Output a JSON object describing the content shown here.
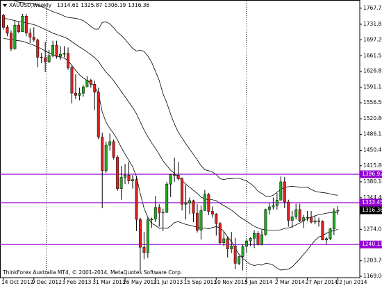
{
  "chart_data": {
    "type": "candlestick",
    "title": "XAUUSD,Weekly",
    "footnote": "ThinkForex Australia MT4, © 2001-2014, MetaQuotes Software Corp.",
    "categories": [
      "14 Oct 2012",
      null,
      null,
      null,
      null,
      null,
      null,
      null,
      "9 Dec 2012",
      null,
      null,
      null,
      null,
      null,
      null,
      null,
      "3 Feb 2013",
      null,
      null,
      null,
      null,
      null,
      null,
      null,
      "31 Mar 2013",
      null,
      null,
      null,
      null,
      null,
      null,
      null,
      "26 May 2013",
      null,
      null,
      null,
      null,
      null,
      null,
      null,
      "21 Jul 2013",
      null,
      null,
      null,
      null,
      null,
      null,
      null,
      "15 Sep 2013",
      null,
      null,
      null,
      null,
      null,
      null,
      null,
      "10 Nov 2013",
      null,
      null,
      null,
      null,
      null,
      null,
      null,
      "5 Jan 2014",
      null,
      null,
      null,
      null,
      null,
      null,
      null,
      "2 Mar 2014",
      null,
      null,
      null,
      null,
      null,
      null,
      null,
      "27 Apr 2014",
      null,
      null,
      null,
      null,
      null,
      null,
      null,
      "22 Jun 2014"
    ],
    "open": [
      1752,
      1725,
      1712,
      1677,
      1730,
      1715,
      1750,
      1712,
      1703,
      1697,
      1658,
      1657,
      1648,
      1662,
      1685,
      1660,
      1665,
      1667,
      1635,
      1578,
      1573,
      1578,
      1592,
      1607,
      1598,
      1580,
      1480,
      1405,
      1462,
      1470,
      1435,
      1365,
      1390,
      1395,
      1382,
      1385,
      1296,
      1234,
      1222,
      1295,
      1297,
      1323,
      1311,
      1312,
      1375,
      1396,
      1395,
      1387,
      1330,
      1333,
      1338,
      1310,
      1272,
      1316,
      1352,
      1314,
      1308,
      1287,
      1244,
      1253,
      1230,
      1237,
      1198,
      1213,
      1236,
      1248,
      1254,
      1265,
      1240,
      1262,
      1318,
      1324,
      1327,
      1339,
      1380,
      1335,
      1294,
      1302,
      1318,
      1293,
      1300,
      1301,
      1290,
      1293,
      1292,
      1250,
      1253,
      1275,
      1314.61
    ],
    "high": [
      1755,
      1730,
      1718,
      1740,
      1738,
      1755,
      1755,
      1722,
      1725,
      1700,
      1668,
      1693,
      1675,
      1695,
      1695,
      1683,
      1683,
      1680,
      1640,
      1620,
      1590,
      1596,
      1616,
      1610,
      1606,
      1590,
      1490,
      1470,
      1488,
      1475,
      1440,
      1415,
      1420,
      1425,
      1395,
      1393,
      1300,
      1268,
      1300,
      1300,
      1348,
      1330,
      1320,
      1380,
      1398,
      1434,
      1424,
      1390,
      1373,
      1345,
      1340,
      1330,
      1327,
      1362,
      1355,
      1325,
      1310,
      1290,
      1268,
      1258,
      1268,
      1255,
      1215,
      1240,
      1252,
      1256,
      1272,
      1270,
      1272,
      1320,
      1332,
      1345,
      1355,
      1392,
      1391,
      1340,
      1315,
      1331,
      1331,
      1306,
      1315,
      1315,
      1305,
      1300,
      1294,
      1257,
      1277,
      1321,
      1325.87
    ],
    "low": [
      1720,
      1705,
      1672,
      1675,
      1712,
      1715,
      1705,
      1690,
      1693,
      1636,
      1645,
      1625,
      1645,
      1658,
      1655,
      1652,
      1658,
      1630,
      1555,
      1565,
      1562,
      1570,
      1592,
      1590,
      1540,
      1475,
      1321,
      1400,
      1450,
      1430,
      1360,
      1340,
      1375,
      1375,
      1365,
      1270,
      1180,
      1207,
      1210,
      1277,
      1290,
      1280,
      1270,
      1310,
      1346,
      1380,
      1383,
      1316,
      1296,
      1308,
      1290,
      1267,
      1251,
      1315,
      1306,
      1300,
      1260,
      1240,
      1236,
      1211,
      1221,
      1185,
      1194,
      1182,
      1222,
      1237,
      1232,
      1238,
      1238,
      1260,
      1307,
      1318,
      1318,
      1339,
      1321,
      1280,
      1277,
      1296,
      1290,
      1277,
      1292,
      1287,
      1285,
      1280,
      1250,
      1240,
      1250,
      1261,
      1306.19
    ],
    "close": [
      1725,
      1712,
      1677,
      1730,
      1715,
      1750,
      1712,
      1703,
      1697,
      1658,
      1657,
      1648,
      1662,
      1685,
      1660,
      1665,
      1667,
      1635,
      1578,
      1573,
      1578,
      1592,
      1607,
      1598,
      1580,
      1480,
      1405,
      1462,
      1470,
      1435,
      1365,
      1390,
      1395,
      1382,
      1385,
      1296,
      1234,
      1222,
      1295,
      1297,
      1323,
      1311,
      1312,
      1375,
      1396,
      1395,
      1387,
      1330,
      1333,
      1338,
      1310,
      1272,
      1316,
      1352,
      1314,
      1308,
      1287,
      1244,
      1253,
      1230,
      1237,
      1198,
      1213,
      1236,
      1248,
      1254,
      1265,
      1240,
      1262,
      1318,
      1324,
      1327,
      1339,
      1380,
      1335,
      1294,
      1302,
      1318,
      1293,
      1300,
      1301,
      1290,
      1293,
      1292,
      1250,
      1253,
      1275,
      1315,
      1316.36
    ],
    "up_color": "#22a822",
    "down_color": "#e02020",
    "wick_color": "#000000",
    "bands": {
      "color": "#000000",
      "upper": [
        1790,
        1789,
        1786,
        1784,
        1781,
        1780,
        1779,
        1778,
        1777,
        1775,
        1771,
        1768,
        1764,
        1760,
        1757,
        1754,
        1750,
        1747,
        1746,
        1745,
        1743,
        1740,
        1734,
        1727,
        1721,
        1721,
        1736,
        1737,
        1733,
        1724,
        1714,
        1707,
        1698,
        1688,
        1678,
        1672,
        1674,
        1671,
        1661,
        1647,
        1627,
        1606,
        1577,
        1556,
        1531,
        1509,
        1491,
        1478,
        1465,
        1453,
        1441,
        1429,
        1416,
        1407,
        1405,
        1402,
        1396,
        1387,
        1385,
        1387,
        1387,
        1388,
        1388,
        1385,
        1382,
        1376,
        1369,
        1359,
        1354,
        1348,
        1347,
        1350,
        1357,
        1363,
        1368,
        1369,
        1370,
        1369,
        1368,
        1368,
        1368,
        1363,
        1359,
        1357,
        1356,
        1355,
        1353,
        1351,
        1350
      ],
      "middle": [
        1745,
        1744,
        1742,
        1740,
        1738,
        1737,
        1735,
        1733,
        1731,
        1728,
        1724,
        1720,
        1716,
        1712,
        1709,
        1706,
        1703,
        1699,
        1693,
        1687,
        1681,
        1676,
        1670,
        1664,
        1657,
        1649,
        1636,
        1625,
        1616,
        1606,
        1594,
        1582,
        1570,
        1558,
        1546,
        1532,
        1514,
        1496,
        1481,
        1467,
        1455,
        1441,
        1427,
        1416,
        1406,
        1399,
        1391,
        1383,
        1375,
        1368,
        1361,
        1354,
        1346,
        1342,
        1340,
        1340,
        1338,
        1332,
        1327,
        1322,
        1317,
        1310,
        1303,
        1297,
        1292,
        1286,
        1281,
        1277,
        1274,
        1273,
        1272,
        1272,
        1272,
        1273,
        1276,
        1277,
        1280,
        1284,
        1288,
        1293,
        1298,
        1301,
        1304,
        1307,
        1308,
        1310,
        1311,
        1311,
        1312
      ],
      "lower": [
        1700,
        1699,
        1698,
        1696,
        1695,
        1694,
        1691,
        1688,
        1685,
        1681,
        1677,
        1672,
        1668,
        1664,
        1661,
        1658,
        1656,
        1651,
        1640,
        1629,
        1619,
        1612,
        1606,
        1601,
        1593,
        1577,
        1536,
        1513,
        1499,
        1488,
        1474,
        1457,
        1442,
        1428,
        1414,
        1392,
        1354,
        1321,
        1301,
        1287,
        1283,
        1276,
        1277,
        1276,
        1281,
        1289,
        1291,
        1288,
        1285,
        1283,
        1281,
        1279,
        1276,
        1277,
        1275,
        1278,
        1280,
        1277,
        1269,
        1257,
        1247,
        1232,
        1218,
        1209,
        1202,
        1196,
        1193,
        1195,
        1194,
        1198,
        1197,
        1194,
        1187,
        1183,
        1184,
        1185,
        1190,
        1199,
        1208,
        1218,
        1228,
        1239,
        1249,
        1257,
        1260,
        1265,
        1269,
        1271,
        1274
      ]
    },
    "levels": [
      1396.92,
      1333.45,
      1240.11
    ],
    "level_color": "#9400d3",
    "ylim": [
      1166,
      1786
    ],
    "yticks": [
      1767.75,
      1731.85,
      {
        "value": 1697.2,
        "label": "1697.20"
      },
      1661.55,
      1626.85,
      1591.15,
      {
        "value": 1556.5,
        "label": "1556.50"
      },
      {
        "value": 1520.8,
        "label": "1520.80"
      },
      1486.15,
      1450.45,
      {
        "value": 1415.8,
        "label": "1415.80"
      },
      {
        "value": 1380.1,
        "label": "1380.10"
      },
      {
        "value": 1344.4,
        "label": "1344.40"
      },
      1274.05,
      {
        "value": 1203.7,
        "label": "1203.70"
      },
      {
        "value": 1169,
        "label": "1169.00"
      }
    ]
  }
}
